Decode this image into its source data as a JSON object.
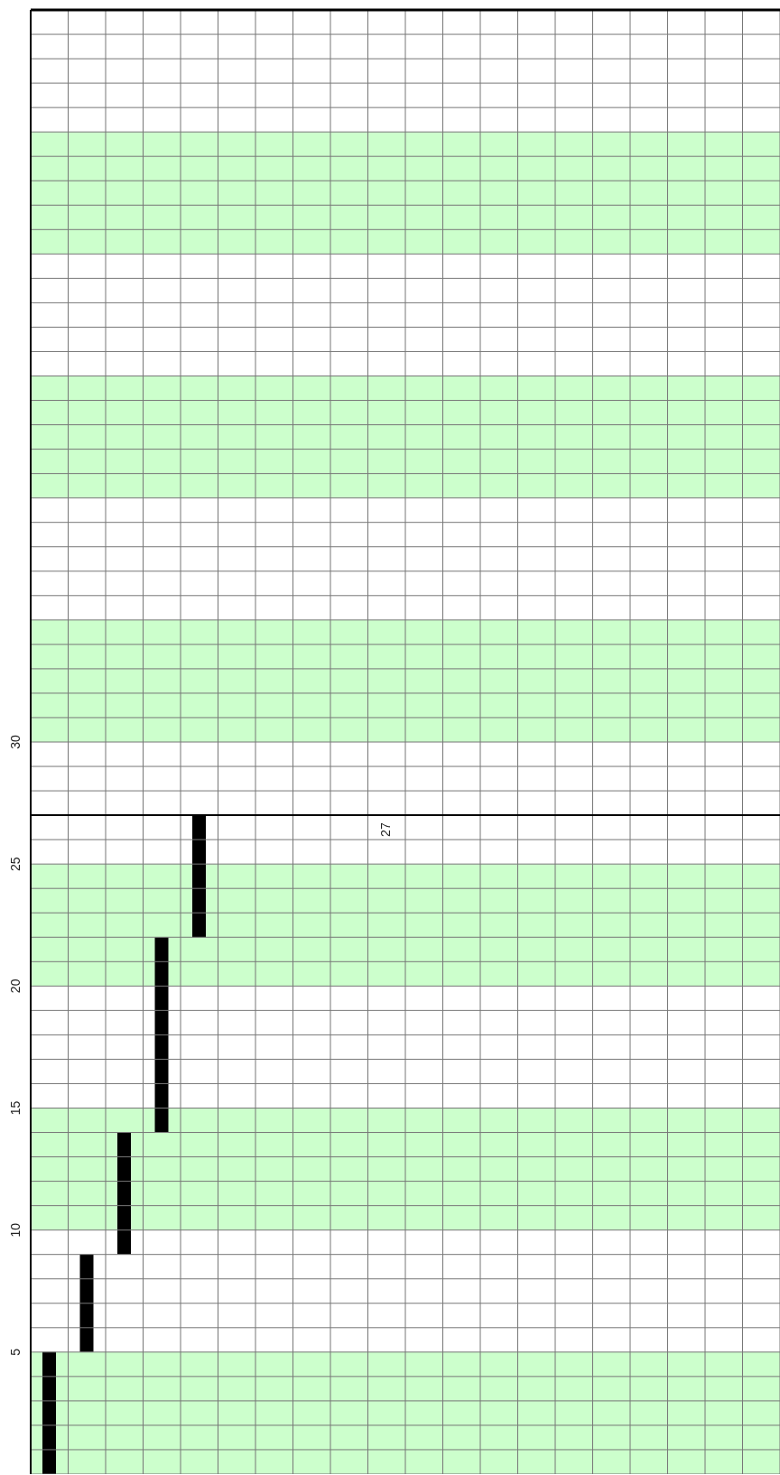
{
  "chart_data": {
    "type": "bar",
    "categories": [
      null,
      null,
      null,
      null,
      null,
      null,
      null,
      null,
      null,
      null,
      null,
      null,
      null,
      null,
      null,
      null,
      null,
      null,
      null,
      null
    ],
    "values": [
      5,
      4,
      5,
      8,
      5,
      null,
      null,
      null,
      null,
      null,
      null,
      null,
      null,
      null,
      null,
      null,
      null,
      null,
      null,
      null
    ],
    "base": [
      0,
      5,
      9,
      14,
      22,
      null,
      null,
      null,
      null,
      null,
      null,
      null,
      null,
      null,
      null,
      null,
      null,
      null,
      null,
      null
    ],
    "color": "#000000",
    "ylim": [
      0,
      60
    ],
    "yticks": [
      {
        "value": 0,
        "label": null
      },
      {
        "value": 1,
        "label": null
      },
      {
        "value": 2,
        "label": null
      },
      {
        "value": 3,
        "label": null
      },
      {
        "value": 4,
        "label": null
      },
      5,
      {
        "value": 6,
        "label": null
      },
      {
        "value": 7,
        "label": null
      },
      {
        "value": 8,
        "label": null
      },
      {
        "value": 9,
        "label": null
      },
      10,
      {
        "value": 11,
        "label": null
      },
      {
        "value": 12,
        "label": null
      },
      {
        "value": 13,
        "label": null
      },
      {
        "value": 14,
        "label": null
      },
      15,
      {
        "value": 16,
        "label": null
      },
      {
        "value": 17,
        "label": null
      },
      {
        "value": 18,
        "label": null
      },
      {
        "value": 19,
        "label": null
      },
      20,
      {
        "value": 21,
        "label": null
      },
      {
        "value": 22,
        "label": null
      },
      {
        "value": 23,
        "label": null
      },
      {
        "value": 24,
        "label": null
      },
      25,
      {
        "value": 26,
        "label": null
      },
      {
        "value": 27,
        "label": null
      },
      {
        "value": 28,
        "label": null
      },
      {
        "value": 29,
        "label": null
      },
      30,
      {
        "value": 31,
        "label": null
      },
      {
        "value": 32,
        "label": null
      },
      {
        "value": 33,
        "label": null
      },
      {
        "value": 34,
        "label": null
      },
      {
        "value": 35,
        "label": null
      },
      {
        "value": 36,
        "label": null
      },
      {
        "value": 37,
        "label": null
      },
      {
        "value": 38,
        "label": null
      },
      {
        "value": 39,
        "label": null
      },
      {
        "value": 40,
        "label": null
      },
      {
        "value": 41,
        "label": null
      },
      {
        "value": 42,
        "label": null
      },
      {
        "value": 43,
        "label": null
      },
      {
        "value": 44,
        "label": null
      },
      {
        "value": 45,
        "label": null
      },
      {
        "value": 46,
        "label": null
      },
      {
        "value": 47,
        "label": null
      },
      {
        "value": 48,
        "label": null
      },
      {
        "value": 49,
        "label": null
      },
      {
        "value": 50,
        "label": null
      },
      {
        "value": 51,
        "label": null
      },
      {
        "value": 52,
        "label": null
      },
      {
        "value": 53,
        "label": null
      },
      {
        "value": 54,
        "label": null
      },
      {
        "value": 55,
        "label": null
      },
      {
        "value": 56,
        "label": null
      },
      {
        "value": 57,
        "label": null
      },
      {
        "value": 58,
        "label": null
      },
      {
        "value": 59,
        "label": null
      },
      {
        "value": 60,
        "label": null
      }
    ],
    "bands": [
      {
        "axis": "y",
        "from": 0,
        "to": 5,
        "color": "#ccffcc"
      },
      {
        "axis": "y",
        "from": 10,
        "to": 15,
        "color": "#ccffcc"
      },
      {
        "axis": "y",
        "from": 20,
        "to": 25,
        "color": "#ccffcc"
      },
      {
        "axis": "y",
        "from": 30,
        "to": 35,
        "color": "#ccffcc"
      },
      {
        "axis": "y",
        "from": 40,
        "to": 45,
        "color": "#ccffcc"
      },
      {
        "axis": "y",
        "from": 50,
        "to": 55,
        "color": "#ccffcc"
      }
    ],
    "ref_lines": [
      {
        "axis": "y",
        "value": 27,
        "label": "27",
        "color": "#000000"
      }
    ],
    "grid": true,
    "tick_labels": "y"
  }
}
